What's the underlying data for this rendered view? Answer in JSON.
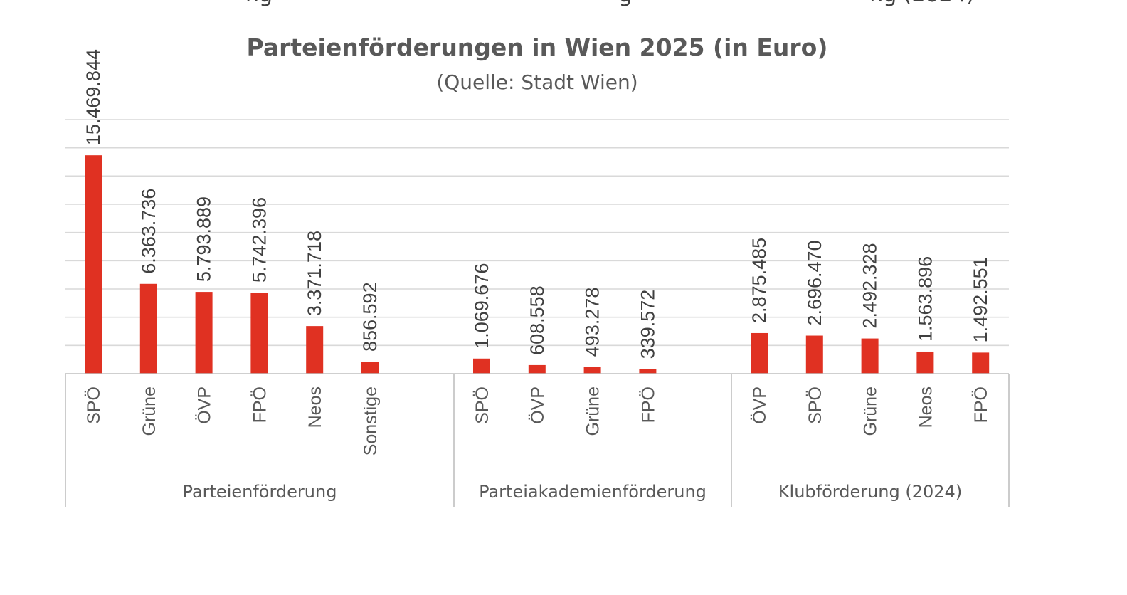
{
  "top_cut_text": "ng                                                   g                                   ng (2024)",
  "chart_data": {
    "type": "bar",
    "title": "Parteienförderungen in Wien 2025 (in Euro)",
    "subtitle": "(Quelle: Stadt Wien)",
    "xlabel": "",
    "ylabel": "",
    "ylim": [
      0,
      18000000
    ],
    "grid": true,
    "legend": "none",
    "color": "#e03122",
    "groups": [
      {
        "name": "Parteienförderung",
        "categories": [
          "SPÖ",
          "Grüne",
          "ÖVP",
          "FPÖ",
          "Neos",
          "Sonstige"
        ],
        "values": [
          15469844,
          6363736,
          5793889,
          5742396,
          3371718,
          856592
        ],
        "labels": [
          "15.469.844",
          "6.363.736",
          "5.793.889",
          "5.742.396",
          "3.371.718",
          "856.592"
        ]
      },
      {
        "name": "Parteiakademienförderung",
        "categories": [
          "SPÖ",
          "ÖVP",
          "Grüne",
          "FPÖ"
        ],
        "values": [
          1069676,
          608558,
          493278,
          339572
        ],
        "labels": [
          "1.069.676",
          "608.558",
          "493.278",
          "339.572"
        ]
      },
      {
        "name": "Klubförderung (2024)",
        "categories": [
          "ÖVP",
          "SPÖ",
          "Grüne",
          "Neos",
          "FPÖ"
        ],
        "values": [
          2875485,
          2696470,
          2492328,
          1563896,
          1492551
        ],
        "labels": [
          "2.875.485",
          "2.696.470",
          "2.492.328",
          "1.563.896",
          "1.492.551"
        ]
      }
    ]
  }
}
